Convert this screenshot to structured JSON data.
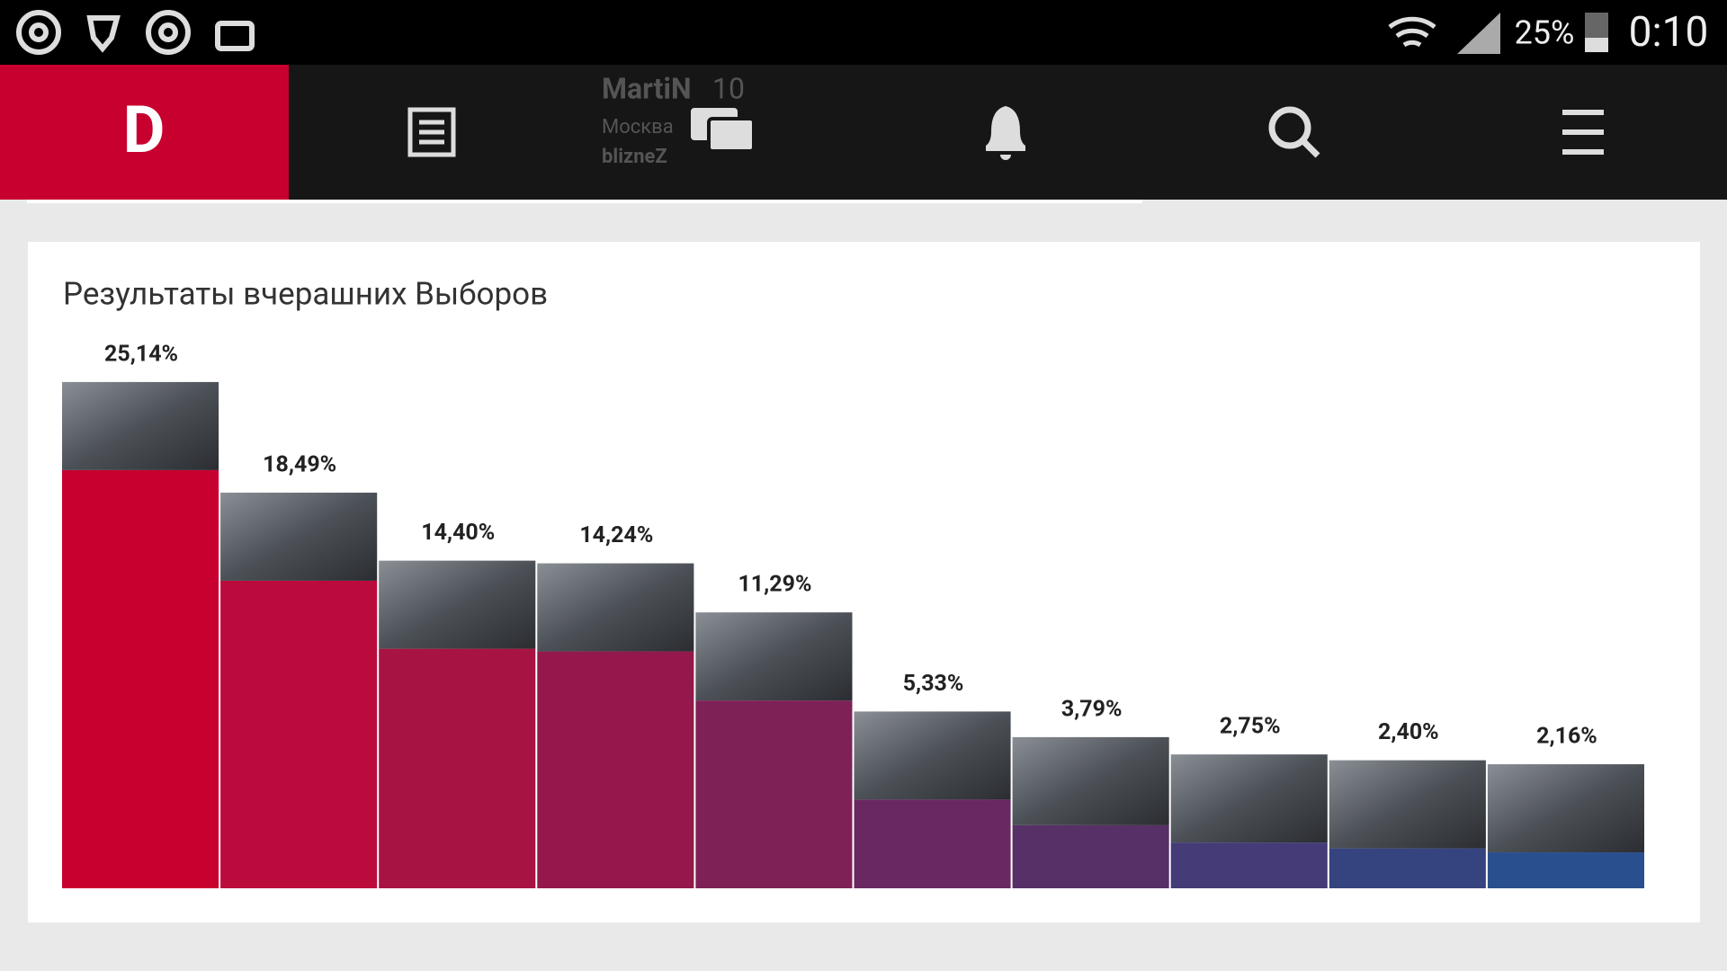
{
  "status_bar": {
    "battery": "25%",
    "time": "0:10"
  },
  "nav": {
    "logo": "D"
  },
  "background_post": {
    "name": "MartiN",
    "count": "10",
    "city": "Москва",
    "user": "blizneZ"
  },
  "chart_data": {
    "type": "bar",
    "title": "Результаты вчерашних Выборов",
    "categories": [
      null,
      null,
      null,
      null,
      null,
      null,
      null,
      null,
      null,
      null
    ],
    "values": [
      25.14,
      18.49,
      14.4,
      14.24,
      11.29,
      5.33,
      3.79,
      2.75,
      2.4,
      2.16
    ],
    "value_labels": [
      "25,14%",
      "18,49%",
      "14,40%",
      "14,24%",
      "11,29%",
      "5,33%",
      "3,79%",
      "2,75%",
      "2,40%",
      "2,16%"
    ],
    "colors": [
      "#c8002f",
      "#bb0b3c",
      "#a71443",
      "#94184b",
      "#7e2157",
      "#6a2862",
      "#573068",
      "#443b77",
      "#35447f",
      "#2a4f8f"
    ]
  }
}
